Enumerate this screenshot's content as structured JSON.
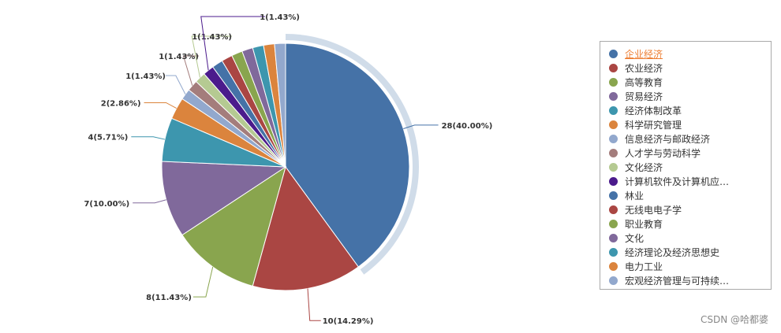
{
  "chart_data": {
    "type": "pie",
    "slices": [
      {
        "name": "企业经济",
        "value": 28,
        "percent": "40.00%",
        "color": "#4572a7"
      },
      {
        "name": "农业经济",
        "value": 10,
        "percent": "14.29%",
        "color": "#aa4643"
      },
      {
        "name": "高等教育",
        "value": 8,
        "percent": "11.43%",
        "color": "#89a54e"
      },
      {
        "name": "贸易经济",
        "value": 7,
        "percent": "10.00%",
        "color": "#80699b"
      },
      {
        "name": "经济体制改革",
        "value": 4,
        "percent": "5.71%",
        "color": "#3d96ae"
      },
      {
        "name": "科学研究管理",
        "value": 2,
        "percent": "2.86%",
        "color": "#db843d"
      },
      {
        "name": "信息经济与邮政经济",
        "value": 1,
        "percent": "1.43%",
        "color": "#92a8cd"
      },
      {
        "name": "人才学与劳动科学",
        "value": 1,
        "percent": "1.43%",
        "color": "#a47d7c"
      },
      {
        "name": "文化经济",
        "value": 1,
        "percent": "1.43%",
        "color": "#b5ca92"
      },
      {
        "name": "计算机软件及计算机应…",
        "value": 1,
        "percent": "1.43%",
        "color": "#4b1b8c"
      },
      {
        "name": "林业",
        "value": 1,
        "percent": "1.43%",
        "color": "#4572a7"
      },
      {
        "name": "无线电电子学",
        "value": 1,
        "percent": "1.43%",
        "color": "#aa4643"
      },
      {
        "name": "职业教育",
        "value": 1,
        "percent": "1.43%",
        "color": "#89a54e"
      },
      {
        "name": "文化",
        "value": 1,
        "percent": "1.43%",
        "color": "#80699b"
      },
      {
        "name": "经济理论及经济思想史",
        "value": 1,
        "percent": "1.43%",
        "color": "#3d96ae"
      },
      {
        "name": "电力工业",
        "value": 1,
        "percent": "1.43%",
        "color": "#db843d"
      },
      {
        "name": "宏观经济管理与可持续…",
        "value": 1,
        "percent": "1.43%",
        "color": "#92a8cd"
      }
    ],
    "visible_labels": [
      "28(40.00%)",
      "10(14.29%)",
      "8(11.43%)",
      "7(10.00%)",
      "4(5.71%)",
      "2(2.86%)",
      "1(1.43%)",
      "1(1.43%)",
      "1(1.43%)",
      "1(1.43%)"
    ],
    "highlighted": "企业经济",
    "legend_position": "right"
  },
  "watermark": "CSDN @哈都婆"
}
